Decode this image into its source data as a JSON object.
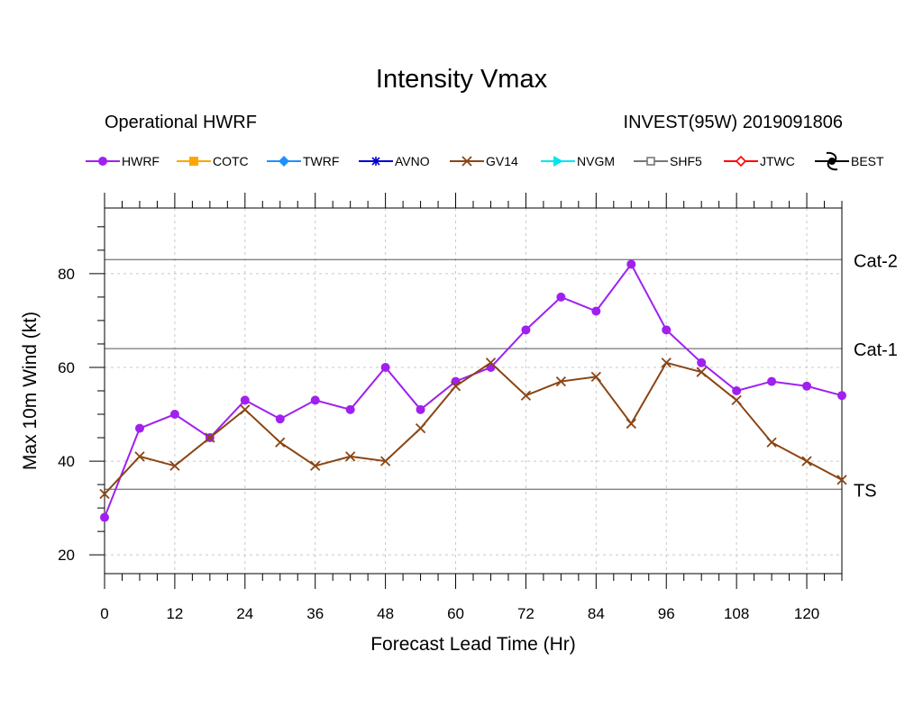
{
  "title": "Intensity Vmax",
  "subtitle_left": "Operational HWRF",
  "subtitle_right": "INVEST(95W) 2019091806",
  "legend": [
    {
      "name": "HWRF",
      "color": "#a020f0",
      "marker": "circle"
    },
    {
      "name": "COTC",
      "color": "#ffa500",
      "marker": "square"
    },
    {
      "name": "TWRF",
      "color": "#1e90ff",
      "marker": "diamond"
    },
    {
      "name": "AVNO",
      "color": "#0000cd",
      "marker": "asterisk"
    },
    {
      "name": "GV14",
      "color": "#8b4513",
      "marker": "x"
    },
    {
      "name": "NVGM",
      "color": "#00e5ee",
      "marker": "triangle-right"
    },
    {
      "name": "SHF5",
      "color": "#777777",
      "marker": "open-square"
    },
    {
      "name": "JTWC",
      "color": "#ff0000",
      "marker": "open-diamond"
    },
    {
      "name": "BEST",
      "color": "#000000",
      "marker": "hurricane-symbol"
    }
  ],
  "chart_data": {
    "type": "line",
    "title": "Intensity Vmax",
    "xlabel": "Forecast Lead Time (Hr)",
    "ylabel": "Max 10m Wind (kt)",
    "xlim": [
      0,
      126
    ],
    "ylim": [
      16,
      94
    ],
    "xticks": [
      0,
      12,
      24,
      36,
      48,
      60,
      72,
      84,
      96,
      108,
      120
    ],
    "yticks": [
      20,
      40,
      60,
      80
    ],
    "grid": "dashed",
    "thresholds": [
      {
        "label": "TS",
        "value": 34
      },
      {
        "label": "Cat-1",
        "value": 64
      },
      {
        "label": "Cat-2",
        "value": 83
      }
    ],
    "series": [
      {
        "name": "HWRF",
        "color": "#a020f0",
        "x": [
          0,
          6,
          12,
          18,
          24,
          30,
          36,
          42,
          48,
          54,
          60,
          66,
          72,
          78,
          84,
          90,
          96,
          102,
          108,
          114,
          120,
          126
        ],
        "values": [
          28,
          47,
          50,
          45,
          53,
          49,
          53,
          51,
          60,
          51,
          57,
          60,
          68,
          75,
          72,
          82,
          68,
          61,
          55,
          57,
          56,
          54
        ]
      },
      {
        "name": "GV14",
        "color": "#8b4513",
        "x": [
          0,
          6,
          12,
          18,
          24,
          30,
          36,
          42,
          48,
          54,
          60,
          66,
          72,
          78,
          84,
          90,
          96,
          102,
          108,
          114,
          120,
          126
        ],
        "values": [
          33,
          41,
          39,
          45,
          51,
          44,
          39,
          41,
          40,
          47,
          56,
          61,
          54,
          57,
          58,
          48,
          61,
          59,
          53,
          44,
          40,
          36
        ]
      }
    ]
  }
}
